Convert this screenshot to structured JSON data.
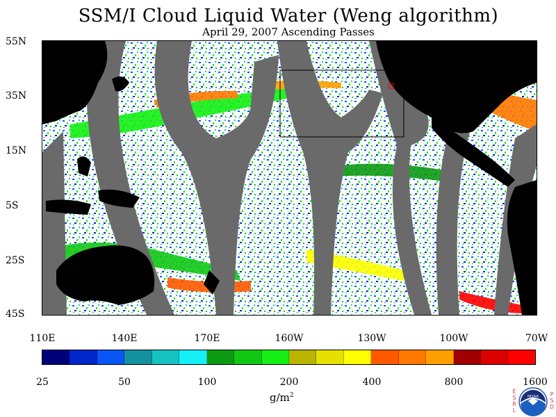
{
  "title": "SSM/I Cloud Liquid Water (Weng algorithm)",
  "subtitle": "April 29, 2007  Ascending Passes",
  "lat_labels": [
    "55N",
    "35N",
    "15N",
    "5S",
    "25S",
    "45S"
  ],
  "lon_labels": [
    "110E",
    "140E",
    "170E",
    "160W",
    "130W",
    "100W",
    "70W"
  ],
  "colorbar": {
    "colors": [
      "#00007a",
      "#0025c8",
      "#0a55f5",
      "#1592a0",
      "#16c3c3",
      "#14f0f5",
      "#0c9a12",
      "#10c814",
      "#14f014",
      "#b8b400",
      "#e6e000",
      "#ffff00",
      "#ff5a00",
      "#ff7800",
      "#ffa000",
      "#a00000",
      "#dc0000",
      "#ff0000"
    ],
    "labels": [
      "25",
      "50",
      "100",
      "200",
      "400",
      "800",
      "1600"
    ],
    "units": "g/m",
    "units_exp": "2"
  },
  "logo": {
    "left_letters": [
      "E",
      "S",
      "R",
      "L"
    ],
    "center_text": "NOAA",
    "right_letters": [
      "P",
      "S",
      "D"
    ]
  },
  "map_colors": {
    "land": "#000000",
    "no_data_swath": "#6a6a6a",
    "clear": "#ffffff"
  }
}
